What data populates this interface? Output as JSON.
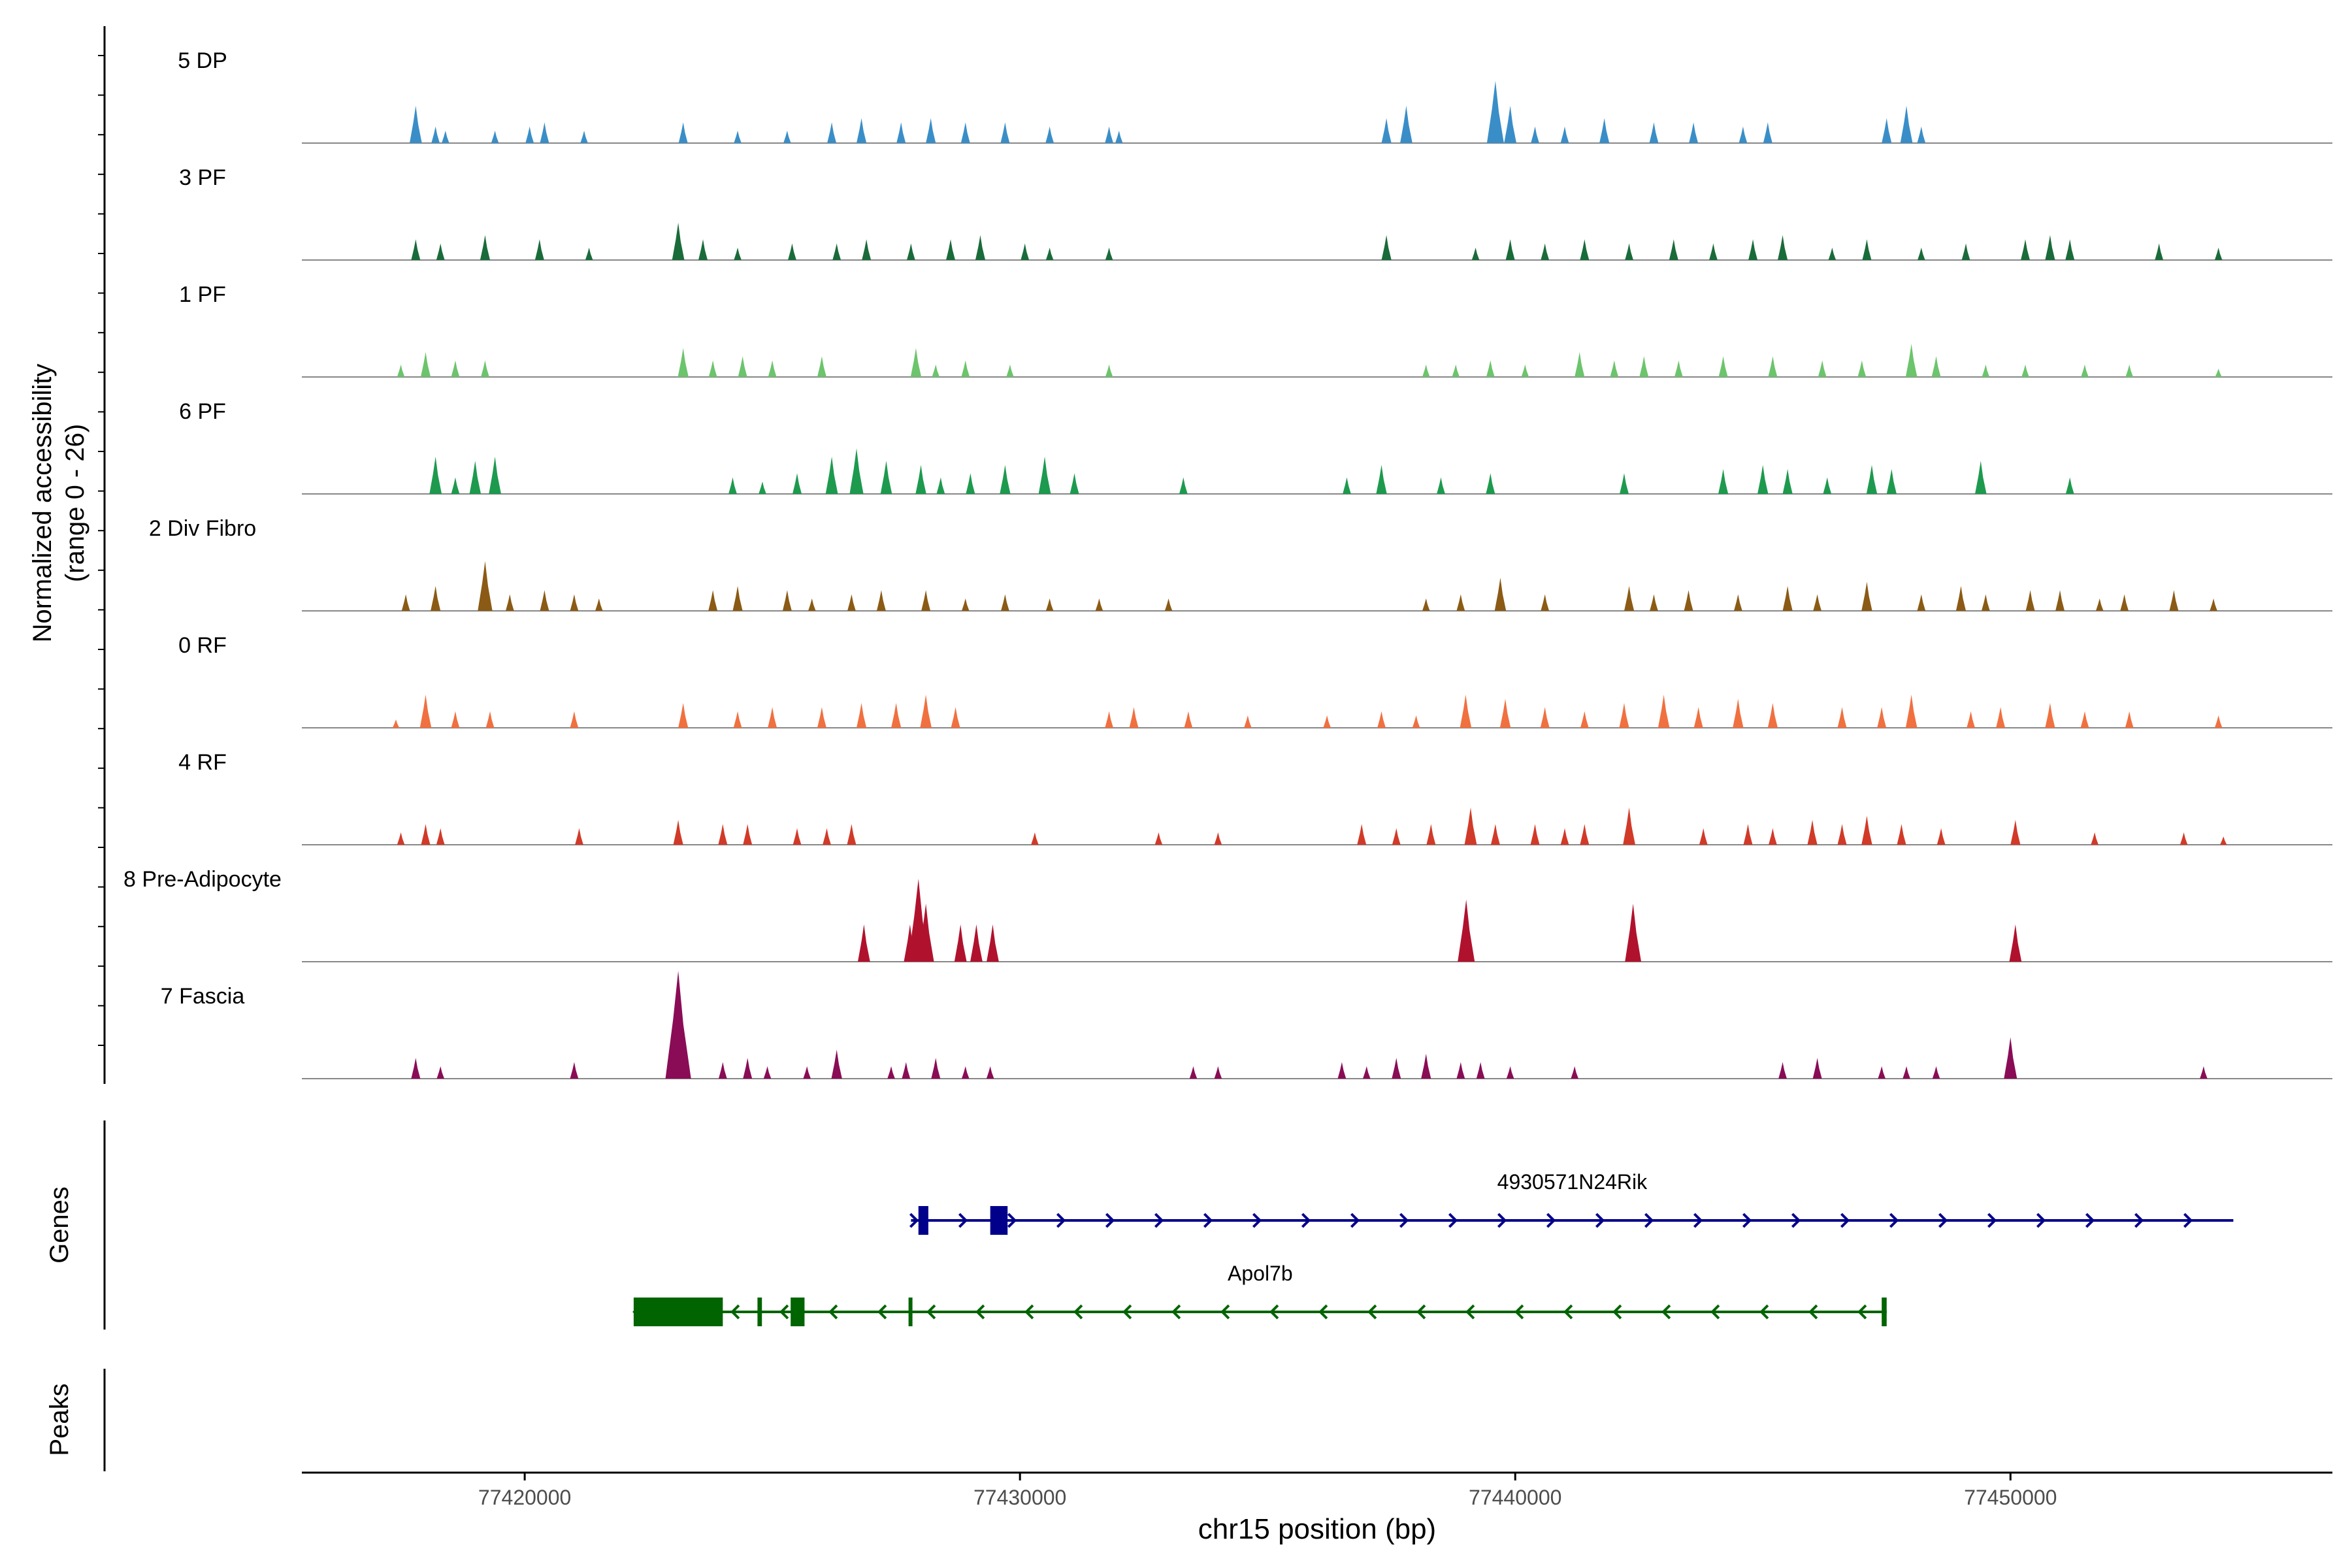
{
  "chart_data": {
    "type": "area",
    "title": "",
    "y_axis_title_line1": "Normalized accessibility",
    "y_axis_title_line2": "(range 0 - 26)",
    "ylim": [
      0,
      26
    ],
    "xlabel": "chr15 position (bp)",
    "xlim": [
      77415500,
      77456500
    ],
    "x_ticks": [
      77420000,
      77430000,
      77440000,
      77450000
    ],
    "x_tick_labels": [
      "77420000",
      "77430000",
      "77440000",
      "77450000"
    ],
    "genes_track_label": "Genes",
    "peaks_track_label": "Peaks",
    "tracks": [
      {
        "name": "5 DP",
        "color": "#3a8ec8",
        "peaks": [
          [
            77417800,
            9
          ],
          [
            77418200,
            4
          ],
          [
            77418400,
            3
          ],
          [
            77419400,
            3
          ],
          [
            77420100,
            4
          ],
          [
            77420400,
            5
          ],
          [
            77421200,
            3
          ],
          [
            77423200,
            5
          ],
          [
            77424300,
            3
          ],
          [
            77425300,
            3
          ],
          [
            77426200,
            5
          ],
          [
            77426800,
            6
          ],
          [
            77427600,
            5
          ],
          [
            77428200,
            6
          ],
          [
            77428900,
            5
          ],
          [
            77429700,
            5
          ],
          [
            77430600,
            4
          ],
          [
            77431800,
            4
          ],
          [
            77432000,
            3
          ],
          [
            77437400,
            6
          ],
          [
            77437800,
            9
          ],
          [
            77439600,
            15
          ],
          [
            77439900,
            9
          ],
          [
            77440400,
            4
          ],
          [
            77441000,
            4
          ],
          [
            77441800,
            6
          ],
          [
            77442800,
            5
          ],
          [
            77443600,
            5
          ],
          [
            77444600,
            4
          ],
          [
            77445100,
            5
          ],
          [
            77447500,
            6
          ],
          [
            77447900,
            9
          ],
          [
            77448200,
            4
          ]
        ]
      },
      {
        "name": "3 PF",
        "color": "#1a6b3a",
        "peaks": [
          [
            77417800,
            5
          ],
          [
            77418300,
            4
          ],
          [
            77419200,
            6
          ],
          [
            77420300,
            5
          ],
          [
            77421300,
            3
          ],
          [
            77423100,
            9
          ],
          [
            77423600,
            5
          ],
          [
            77424300,
            3
          ],
          [
            77425400,
            4
          ],
          [
            77426300,
            4
          ],
          [
            77426900,
            5
          ],
          [
            77427800,
            4
          ],
          [
            77428600,
            5
          ],
          [
            77429200,
            6
          ],
          [
            77430100,
            4
          ],
          [
            77430600,
            3
          ],
          [
            77431800,
            3
          ],
          [
            77437400,
            6
          ],
          [
            77439200,
            3
          ],
          [
            77439900,
            5
          ],
          [
            77440600,
            4
          ],
          [
            77441400,
            5
          ],
          [
            77442300,
            4
          ],
          [
            77443200,
            5
          ],
          [
            77444000,
            4
          ],
          [
            77444800,
            5
          ],
          [
            77445400,
            6
          ],
          [
            77446400,
            3
          ],
          [
            77447100,
            5
          ],
          [
            77448200,
            3
          ],
          [
            77449100,
            4
          ],
          [
            77450300,
            5
          ],
          [
            77450800,
            6
          ],
          [
            77451200,
            5
          ],
          [
            77453000,
            4
          ],
          [
            77454200,
            3
          ]
        ]
      },
      {
        "name": "1 PF",
        "color": "#6cc46c",
        "peaks": [
          [
            77417500,
            3
          ],
          [
            77418000,
            6
          ],
          [
            77418600,
            4
          ],
          [
            77419200,
            4
          ],
          [
            77423200,
            7
          ],
          [
            77423800,
            4
          ],
          [
            77424400,
            5
          ],
          [
            77425000,
            4
          ],
          [
            77426000,
            5
          ],
          [
            77427900,
            7
          ],
          [
            77428300,
            3
          ],
          [
            77428900,
            4
          ],
          [
            77429800,
            3
          ],
          [
            77431800,
            3
          ],
          [
            77438200,
            3
          ],
          [
            77438800,
            3
          ],
          [
            77439500,
            4
          ],
          [
            77440200,
            3
          ],
          [
            77441300,
            6
          ],
          [
            77442000,
            4
          ],
          [
            77442600,
            5
          ],
          [
            77443300,
            4
          ],
          [
            77444200,
            5
          ],
          [
            77445200,
            5
          ],
          [
            77446200,
            4
          ],
          [
            77447000,
            4
          ],
          [
            77448000,
            8
          ],
          [
            77448500,
            5
          ],
          [
            77449500,
            3
          ],
          [
            77450300,
            3
          ],
          [
            77451500,
            3
          ],
          [
            77452400,
            3
          ],
          [
            77454200,
            2
          ]
        ]
      },
      {
        "name": "6 PF",
        "color": "#1d9a4e",
        "peaks": [
          [
            77418200,
            9
          ],
          [
            77418600,
            4
          ],
          [
            77419000,
            8
          ],
          [
            77419400,
            9
          ],
          [
            77424200,
            4
          ],
          [
            77424800,
            3
          ],
          [
            77425500,
            5
          ],
          [
            77426200,
            9
          ],
          [
            77426700,
            11
          ],
          [
            77427300,
            8
          ],
          [
            77428000,
            7
          ],
          [
            77428400,
            4
          ],
          [
            77429000,
            5
          ],
          [
            77429700,
            7
          ],
          [
            77430500,
            9
          ],
          [
            77431100,
            5
          ],
          [
            77433300,
            4
          ],
          [
            77436600,
            4
          ],
          [
            77437300,
            7
          ],
          [
            77438500,
            4
          ],
          [
            77439500,
            5
          ],
          [
            77442200,
            5
          ],
          [
            77444200,
            6
          ],
          [
            77445000,
            7
          ],
          [
            77445500,
            6
          ],
          [
            77446300,
            4
          ],
          [
            77447200,
            7
          ],
          [
            77447600,
            6
          ],
          [
            77449400,
            8
          ],
          [
            77451200,
            4
          ]
        ]
      },
      {
        "name": "2 Div Fibro",
        "color": "#8b5a14",
        "peaks": [
          [
            77417600,
            4
          ],
          [
            77418200,
            6
          ],
          [
            77419200,
            12
          ],
          [
            77419700,
            4
          ],
          [
            77420400,
            5
          ],
          [
            77421000,
            4
          ],
          [
            77421500,
            3
          ],
          [
            77423800,
            5
          ],
          [
            77424300,
            6
          ],
          [
            77425300,
            5
          ],
          [
            77425800,
            3
          ],
          [
            77426600,
            4
          ],
          [
            77427200,
            5
          ],
          [
            77428100,
            5
          ],
          [
            77428900,
            3
          ],
          [
            77429700,
            4
          ],
          [
            77430600,
            3
          ],
          [
            77431600,
            3
          ],
          [
            77433000,
            3
          ],
          [
            77438200,
            3
          ],
          [
            77438900,
            4
          ],
          [
            77439700,
            8
          ],
          [
            77440600,
            4
          ],
          [
            77442300,
            6
          ],
          [
            77442800,
            4
          ],
          [
            77443500,
            5
          ],
          [
            77444500,
            4
          ],
          [
            77445500,
            6
          ],
          [
            77446100,
            4
          ],
          [
            77447100,
            7
          ],
          [
            77448200,
            4
          ],
          [
            77449000,
            6
          ],
          [
            77449500,
            4
          ],
          [
            77450400,
            5
          ],
          [
            77451000,
            5
          ],
          [
            77451800,
            3
          ],
          [
            77452300,
            4
          ],
          [
            77453300,
            5
          ],
          [
            77454100,
            3
          ]
        ]
      },
      {
        "name": "0 RF",
        "color": "#f07040",
        "peaks": [
          [
            77417400,
            2
          ],
          [
            77418000,
            8
          ],
          [
            77418600,
            4
          ],
          [
            77419300,
            4
          ],
          [
            77421000,
            4
          ],
          [
            77423200,
            6
          ],
          [
            77424300,
            4
          ],
          [
            77425000,
            5
          ],
          [
            77426000,
            5
          ],
          [
            77426800,
            6
          ],
          [
            77427500,
            6
          ],
          [
            77428100,
            8
          ],
          [
            77428700,
            5
          ],
          [
            77431800,
            4
          ],
          [
            77432300,
            5
          ],
          [
            77433400,
            4
          ],
          [
            77434600,
            3
          ],
          [
            77436200,
            3
          ],
          [
            77437300,
            4
          ],
          [
            77438000,
            3
          ],
          [
            77439000,
            8
          ],
          [
            77439800,
            7
          ],
          [
            77440600,
            5
          ],
          [
            77441400,
            4
          ],
          [
            77442200,
            6
          ],
          [
            77443000,
            8
          ],
          [
            77443700,
            5
          ],
          [
            77444500,
            7
          ],
          [
            77445200,
            6
          ],
          [
            77446600,
            5
          ],
          [
            77447400,
            5
          ],
          [
            77448000,
            8
          ],
          [
            77449200,
            4
          ],
          [
            77449800,
            5
          ],
          [
            77450800,
            6
          ],
          [
            77451500,
            4
          ],
          [
            77452400,
            4
          ],
          [
            77454200,
            3
          ]
        ]
      },
      {
        "name": "4 RF",
        "color": "#d13a28",
        "peaks": [
          [
            77417500,
            3
          ],
          [
            77418000,
            5
          ],
          [
            77418300,
            4
          ],
          [
            77421100,
            4
          ],
          [
            77423100,
            6
          ],
          [
            77424000,
            5
          ],
          [
            77424500,
            5
          ],
          [
            77425500,
            4
          ],
          [
            77426100,
            4
          ],
          [
            77426600,
            5
          ],
          [
            77430300,
            3
          ],
          [
            77432800,
            3
          ],
          [
            77434000,
            3
          ],
          [
            77436900,
            5
          ],
          [
            77437600,
            4
          ],
          [
            77438300,
            5
          ],
          [
            77439100,
            9
          ],
          [
            77439600,
            5
          ],
          [
            77440400,
            5
          ],
          [
            77441000,
            4
          ],
          [
            77441400,
            5
          ],
          [
            77442300,
            9
          ],
          [
            77443800,
            4
          ],
          [
            77444700,
            5
          ],
          [
            77445200,
            4
          ],
          [
            77446000,
            6
          ],
          [
            77446600,
            5
          ],
          [
            77447100,
            7
          ],
          [
            77447800,
            5
          ],
          [
            77448600,
            4
          ],
          [
            77450100,
            6
          ],
          [
            77451700,
            3
          ],
          [
            77453500,
            3
          ],
          [
            77454300,
            2
          ]
        ]
      },
      {
        "name": "8 Pre-Adipocyte",
        "color": "#b0122e",
        "peaks": [
          [
            77426850,
            9
          ],
          [
            77427780,
            9
          ],
          [
            77427950,
            20
          ],
          [
            77428100,
            14
          ],
          [
            77428800,
            9
          ],
          [
            77429120,
            9
          ],
          [
            77429450,
            9
          ],
          [
            77439010,
            15
          ],
          [
            77442380,
            14
          ],
          [
            77450100,
            9
          ]
        ]
      },
      {
        "name": "7 Fascia",
        "color": "#8a0c56",
        "peaks": [
          [
            77417800,
            5
          ],
          [
            77418300,
            3
          ],
          [
            77421000,
            4
          ],
          [
            77423100,
            26
          ],
          [
            77424000,
            4
          ],
          [
            77424500,
            5
          ],
          [
            77424900,
            3
          ],
          [
            77425700,
            3
          ],
          [
            77426300,
            7
          ],
          [
            77427400,
            3
          ],
          [
            77427700,
            4
          ],
          [
            77428300,
            5
          ],
          [
            77428900,
            3
          ],
          [
            77429400,
            3
          ],
          [
            77433500,
            3
          ],
          [
            77434000,
            3
          ],
          [
            77436500,
            4
          ],
          [
            77437000,
            3
          ],
          [
            77437600,
            5
          ],
          [
            77438200,
            6
          ],
          [
            77438900,
            4
          ],
          [
            77439300,
            4
          ],
          [
            77439900,
            3
          ],
          [
            77441200,
            3
          ],
          [
            77445400,
            4
          ],
          [
            77446100,
            5
          ],
          [
            77447400,
            3
          ],
          [
            77447900,
            3
          ],
          [
            77448500,
            3
          ],
          [
            77450000,
            10
          ],
          [
            77453900,
            3
          ]
        ]
      }
    ],
    "genes": [
      {
        "name": "4930571N24Rik",
        "color": "#00008b",
        "strand": "+",
        "start": 77427800,
        "end": 77454500,
        "exons": [
          [
            77427950,
            77428150
          ],
          [
            77429400,
            77429750
          ]
        ]
      },
      {
        "name": "Apol7b",
        "color": "#006400",
        "strand": "-",
        "start": 77422200,
        "end": 77447500,
        "exons": [
          [
            77422200,
            77424000
          ],
          [
            77424700,
            77424790
          ],
          [
            77425370,
            77425650
          ],
          [
            77427750,
            77427820
          ],
          [
            77447400,
            77447500
          ]
        ]
      }
    ]
  }
}
